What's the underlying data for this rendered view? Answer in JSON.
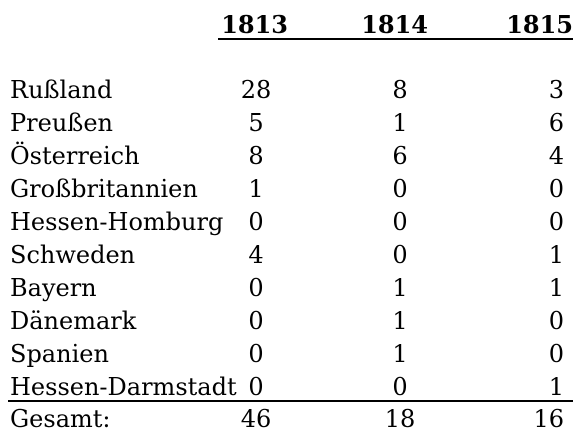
{
  "header": {
    "years": [
      "1813",
      "1814",
      "1815"
    ]
  },
  "rows": [
    {
      "name": "Rußland",
      "v1813": "28",
      "v1814": "8",
      "v1815": "3"
    },
    {
      "name": "Preußen",
      "v1813": "5",
      "v1814": "1",
      "v1815": "6"
    },
    {
      "name": "Österreich",
      "v1813": "8",
      "v1814": "6",
      "v1815": "4"
    },
    {
      "name": "Großbritannien",
      "v1813": "1",
      "v1814": "0",
      "v1815": "0"
    },
    {
      "name": "Hessen-Homburg",
      "v1813": "0",
      "v1814": "0",
      "v1815": "0"
    },
    {
      "name": "Schweden",
      "v1813": "4",
      "v1814": "0",
      "v1815": "1"
    },
    {
      "name": "Bayern",
      "v1813": "0",
      "v1814": "1",
      "v1815": "1"
    },
    {
      "name": "Dänemark",
      "v1813": "0",
      "v1814": "1",
      "v1815": "0"
    },
    {
      "name": "Spanien",
      "v1813": "0",
      "v1814": "1",
      "v1815": "0"
    },
    {
      "name": "Hessen-Darmstadt",
      "v1813": "0",
      "v1814": "0",
      "v1815": "1"
    }
  ],
  "total": {
    "label": "Gesamt:",
    "v1813": "46",
    "v1814": "18",
    "v1815": "16"
  }
}
